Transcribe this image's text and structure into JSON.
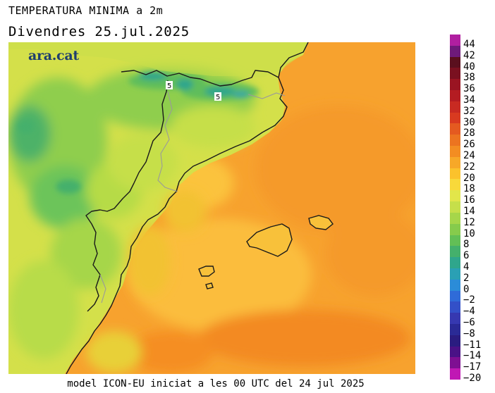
{
  "title": "TEMPERATURA MINIMA a 2m",
  "subtitle": "Divendres  25.jul.2025",
  "logo": "ara.cat",
  "footer": "model ICON-EU iniciat a les 00 UTC del 24 jul 2025",
  "contour_labels": [
    "5",
    "5"
  ],
  "legend": {
    "values": [
      "44",
      "42",
      "40",
      "38",
      "36",
      "34",
      "32",
      "30",
      "28",
      "26",
      "24",
      "22",
      "20",
      "18",
      "16",
      "14",
      "12",
      "10",
      "8",
      "6",
      "4",
      "2",
      "0",
      "−2",
      "−4",
      "−6",
      "−8",
      "−11",
      "−14",
      "−17",
      "−20"
    ],
    "colors": [
      "#b01fa0",
      "#6e1a7a",
      "#5a0f1e",
      "#7a1020",
      "#9a1422",
      "#b41c22",
      "#c82a22",
      "#d83a20",
      "#e45a20",
      "#ec7420",
      "#f38d22",
      "#f7a828",
      "#fbc22c",
      "#f8d93a",
      "#e2e64a",
      "#c6df4a",
      "#a6d64a",
      "#86cb4c",
      "#62bf56",
      "#44b06c",
      "#2fa68c",
      "#2aa0b4",
      "#2b8cd8",
      "#2f6bd8",
      "#3350c8",
      "#3638b0",
      "#2a2a96",
      "#2a1c80",
      "#4a1286",
      "#7e0f92",
      "#c018b4"
    ]
  },
  "colors": {
    "warm_sea": "#f8a034",
    "cool_green": "#6cc45a",
    "border_line": "#1a1a1a",
    "region_line": "#a0a0a0"
  }
}
